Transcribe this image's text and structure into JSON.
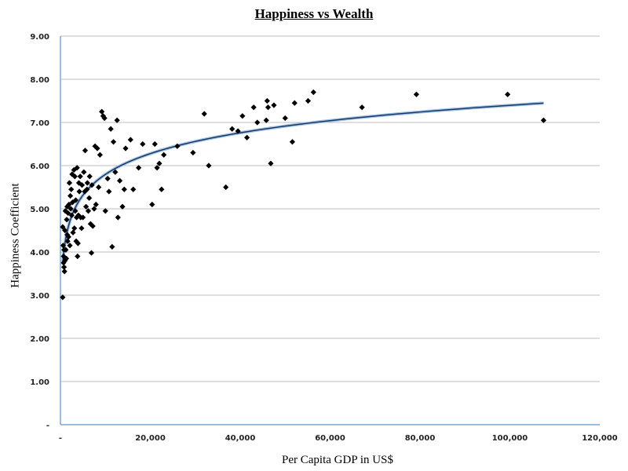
{
  "chart_data": {
    "type": "scatter",
    "title": "Happiness vs Wealth",
    "xlabel": "Per Capita GDP in US$",
    "ylabel": "Happiness Coefficient",
    "xlim": [
      0,
      120000
    ],
    "ylim": [
      0,
      9
    ],
    "x_ticks": [
      "-",
      "20,000",
      "40,000",
      "60,000",
      "80,000",
      "100,000",
      "120,000"
    ],
    "y_ticks": [
      "-",
      "1.00",
      "2.00",
      "3.00",
      "4.00",
      "5.00",
      "6.00",
      "7.00",
      "8.00",
      "9.00"
    ],
    "grid": "horizontal",
    "colors": {
      "points": "#000000",
      "trendline": "#1f3864",
      "axis": "#7aa7d4",
      "grid": "#bfbfbf"
    },
    "trendline": {
      "type": "logarithmic",
      "x_start": 500,
      "x_end": 107500
    },
    "points": [
      [
        500,
        2.95
      ],
      [
        500,
        4.58
      ],
      [
        600,
        4.15
      ],
      [
        700,
        3.9
      ],
      [
        700,
        3.75
      ],
      [
        800,
        3.65
      ],
      [
        800,
        4.05
      ],
      [
        900,
        3.55
      ],
      [
        1000,
        3.8
      ],
      [
        1000,
        4.5
      ],
      [
        1100,
        4.95
      ],
      [
        1200,
        4.05
      ],
      [
        1300,
        3.85
      ],
      [
        1400,
        4.75
      ],
      [
        1500,
        4.4
      ],
      [
        1500,
        5.05
      ],
      [
        1600,
        4.25
      ],
      [
        1700,
        4.9
      ],
      [
        1800,
        4.35
      ],
      [
        1900,
        5.1
      ],
      [
        2000,
        5.6
      ],
      [
        2100,
        4.15
      ],
      [
        2200,
        5.3
      ],
      [
        2300,
        5.0
      ],
      [
        2400,
        5.45
      ],
      [
        2500,
        4.85
      ],
      [
        2600,
        5.8
      ],
      [
        2700,
        5.15
      ],
      [
        2800,
        4.45
      ],
      [
        3000,
        5.9
      ],
      [
        3100,
        4.55
      ],
      [
        3200,
        5.75
      ],
      [
        3300,
        4.95
      ],
      [
        3400,
        5.2
      ],
      [
        3500,
        4.25
      ],
      [
        3600,
        4.8
      ],
      [
        3700,
        5.95
      ],
      [
        3800,
        3.9
      ],
      [
        3900,
        4.2
      ],
      [
        4000,
        4.85
      ],
      [
        4100,
        5.6
      ],
      [
        4200,
        5.4
      ],
      [
        4400,
        5.75
      ],
      [
        4500,
        4.8
      ],
      [
        4700,
        4.55
      ],
      [
        4800,
        5.55
      ],
      [
        5000,
        4.8
      ],
      [
        5200,
        5.85
      ],
      [
        5400,
        5.4
      ],
      [
        5500,
        6.35
      ],
      [
        5700,
        5.05
      ],
      [
        5900,
        5.45
      ],
      [
        6000,
        5.6
      ],
      [
        6200,
        4.95
      ],
      [
        6400,
        5.25
      ],
      [
        6500,
        5.75
      ],
      [
        6700,
        4.65
      ],
      [
        6900,
        3.98
      ],
      [
        7000,
        5.55
      ],
      [
        7200,
        4.6
      ],
      [
        7500,
        5.0
      ],
      [
        7700,
        6.45
      ],
      [
        7900,
        5.1
      ],
      [
        8200,
        6.4
      ],
      [
        8500,
        5.5
      ],
      [
        8800,
        6.25
      ],
      [
        9200,
        7.25
      ],
      [
        9500,
        7.15
      ],
      [
        9800,
        7.1
      ],
      [
        10000,
        4.95
      ],
      [
        10500,
        5.7
      ],
      [
        10800,
        5.4
      ],
      [
        11200,
        6.85
      ],
      [
        11500,
        4.12
      ],
      [
        11800,
        6.55
      ],
      [
        12200,
        5.85
      ],
      [
        12600,
        7.05
      ],
      [
        12800,
        4.8
      ],
      [
        13200,
        5.65
      ],
      [
        13800,
        5.05
      ],
      [
        14200,
        5.45
      ],
      [
        14500,
        6.4
      ],
      [
        15600,
        6.6
      ],
      [
        16200,
        5.45
      ],
      [
        17400,
        5.95
      ],
      [
        18300,
        6.5
      ],
      [
        20400,
        5.1
      ],
      [
        21000,
        6.5
      ],
      [
        21500,
        5.95
      ],
      [
        22000,
        6.05
      ],
      [
        22500,
        5.45
      ],
      [
        23000,
        6.25
      ],
      [
        26000,
        6.45
      ],
      [
        29500,
        6.3
      ],
      [
        32000,
        7.2
      ],
      [
        33000,
        6.0
      ],
      [
        36800,
        5.5
      ],
      [
        38200,
        6.85
      ],
      [
        39500,
        6.8
      ],
      [
        40500,
        7.15
      ],
      [
        41500,
        6.65
      ],
      [
        43000,
        7.35
      ],
      [
        43800,
        7.0
      ],
      [
        45800,
        7.05
      ],
      [
        46000,
        7.5
      ],
      [
        46200,
        7.35
      ],
      [
        46800,
        6.05
      ],
      [
        47500,
        7.4
      ],
      [
        50000,
        7.1
      ],
      [
        51600,
        6.55
      ],
      [
        52100,
        7.45
      ],
      [
        55100,
        7.5
      ],
      [
        56300,
        7.7
      ],
      [
        67100,
        7.35
      ],
      [
        79200,
        7.65
      ],
      [
        99500,
        7.65
      ],
      [
        107500,
        7.05
      ]
    ]
  }
}
